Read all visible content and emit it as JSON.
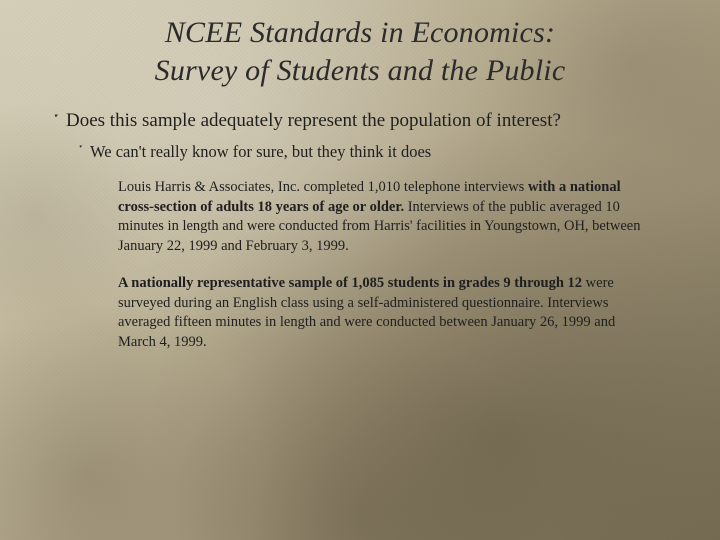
{
  "colors": {
    "text_primary": "#1f1f1f",
    "text_heading": "#2b2b2b",
    "bg_light": "#d4ceb8",
    "bg_dark": "#7a7158"
  },
  "title": {
    "line1": "NCEE Standards in Economics:",
    "line2": "Survey of Students and the Public",
    "font_style": "italic",
    "font_size_pt": 30
  },
  "bullets": {
    "glyph": "་",
    "level1": {
      "text": "Does this sample adequately represent the population of interest?",
      "font_size_pt": 19
    },
    "level2": {
      "text": "We can't really know for sure, but they think it does",
      "font_size_pt": 16.5
    }
  },
  "paragraphs": {
    "p1": {
      "pre": "Louis Harris & Associates, Inc. completed 1,010 telephone interviews ",
      "bold": "with a national cross-section of adults 18 years of age or older.",
      "post": " Interviews of the public averaged 10 minutes in length and were conducted from Harris' facilities in Youngstown, OH, between January 22, 1999 and February 3, 1999.",
      "font_size_pt": 14.5
    },
    "p2": {
      "lead_space": " ",
      "bold": "A nationally representative sample of 1,085 students in grades 9 through 12",
      "post": " were surveyed during an English class using a self-administered questionnaire. Interviews averaged fifteen minutes in length and were conducted between January 26, 1999 and March 4, 1999.",
      "font_size_pt": 14.5
    }
  }
}
